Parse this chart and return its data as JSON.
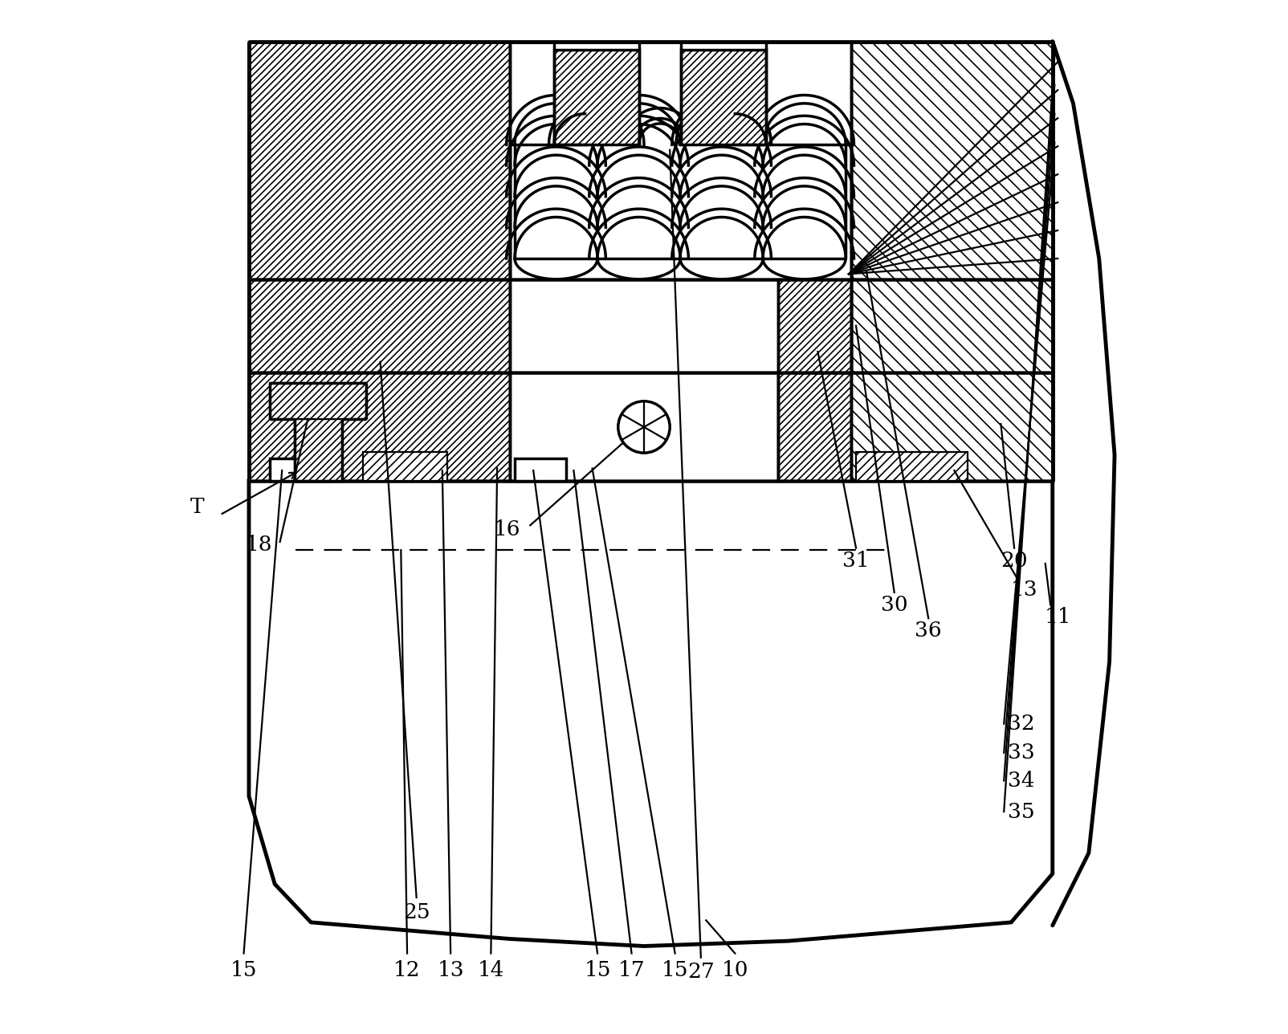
{
  "bg": "#ffffff",
  "lc": "#000000",
  "lw": 2.5,
  "lw_thin": 1.6,
  "lw_thick": 3.5,
  "fig_w": 16.04,
  "fig_h": 12.88,
  "dpi": 100,
  "label_fs": 19
}
